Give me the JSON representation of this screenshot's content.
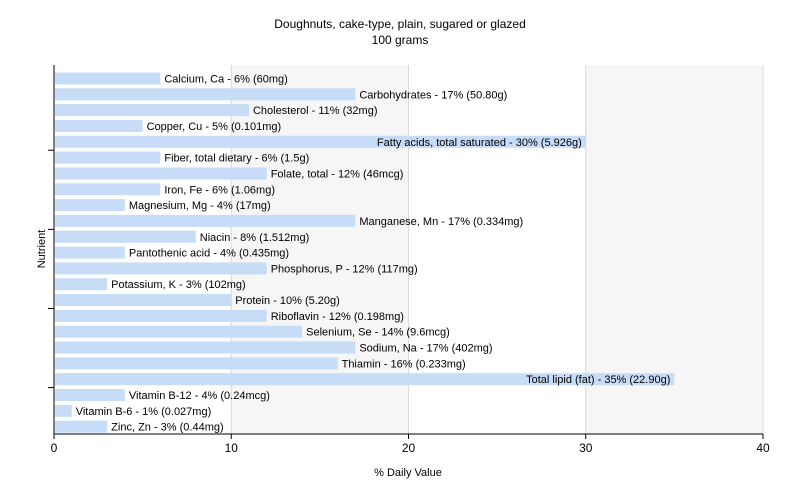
{
  "chart_data": {
    "type": "bar",
    "orientation": "horizontal",
    "title": "Doughnuts, cake-type, plain, sugared or glazed",
    "subtitle": "100 grams",
    "xlabel": "% Daily Value",
    "ylabel": "Nutrient",
    "xlim": [
      0,
      40
    ],
    "xticks": [
      0,
      10,
      20,
      30,
      40
    ],
    "grid": true,
    "bar_color": "#c6dcf7",
    "grid_color": "#d9d9d9",
    "bars": [
      {
        "label": "Calcium, Ca - 6% (60mg)",
        "value": 6
      },
      {
        "label": "Carbohydrates - 17% (50.80g)",
        "value": 17
      },
      {
        "label": "Cholesterol - 11% (32mg)",
        "value": 11
      },
      {
        "label": "Copper, Cu - 5% (0.101mg)",
        "value": 5
      },
      {
        "label": "Fatty acids, total saturated - 30% (5.926g)",
        "value": 30
      },
      {
        "label": "Fiber, total dietary - 6% (1.5g)",
        "value": 6
      },
      {
        "label": "Folate, total - 12% (46mcg)",
        "value": 12
      },
      {
        "label": "Iron, Fe - 6% (1.06mg)",
        "value": 6
      },
      {
        "label": "Magnesium, Mg - 4% (17mg)",
        "value": 4
      },
      {
        "label": "Manganese, Mn - 17% (0.334mg)",
        "value": 17
      },
      {
        "label": "Niacin - 8% (1.512mg)",
        "value": 8
      },
      {
        "label": "Pantothenic acid - 4% (0.435mg)",
        "value": 4
      },
      {
        "label": "Phosphorus, P - 12% (117mg)",
        "value": 12
      },
      {
        "label": "Potassium, K - 3% (102mg)",
        "value": 3
      },
      {
        "label": "Protein - 10% (5.20g)",
        "value": 10
      },
      {
        "label": "Riboflavin - 12% (0.198mg)",
        "value": 12
      },
      {
        "label": "Selenium, Se - 14% (9.6mcg)",
        "value": 14
      },
      {
        "label": "Sodium, Na - 17% (402mg)",
        "value": 17
      },
      {
        "label": "Thiamin - 16% (0.233mg)",
        "value": 16
      },
      {
        "label": "Total lipid (fat) - 35% (22.90g)",
        "value": 35
      },
      {
        "label": "Vitamin B-12 - 4% (0.24mcg)",
        "value": 4
      },
      {
        "label": "Vitamin B-6 - 1% (0.027mg)",
        "value": 1
      },
      {
        "label": "Zinc, Zn - 3% (0.44mg)",
        "value": 3
      }
    ]
  }
}
